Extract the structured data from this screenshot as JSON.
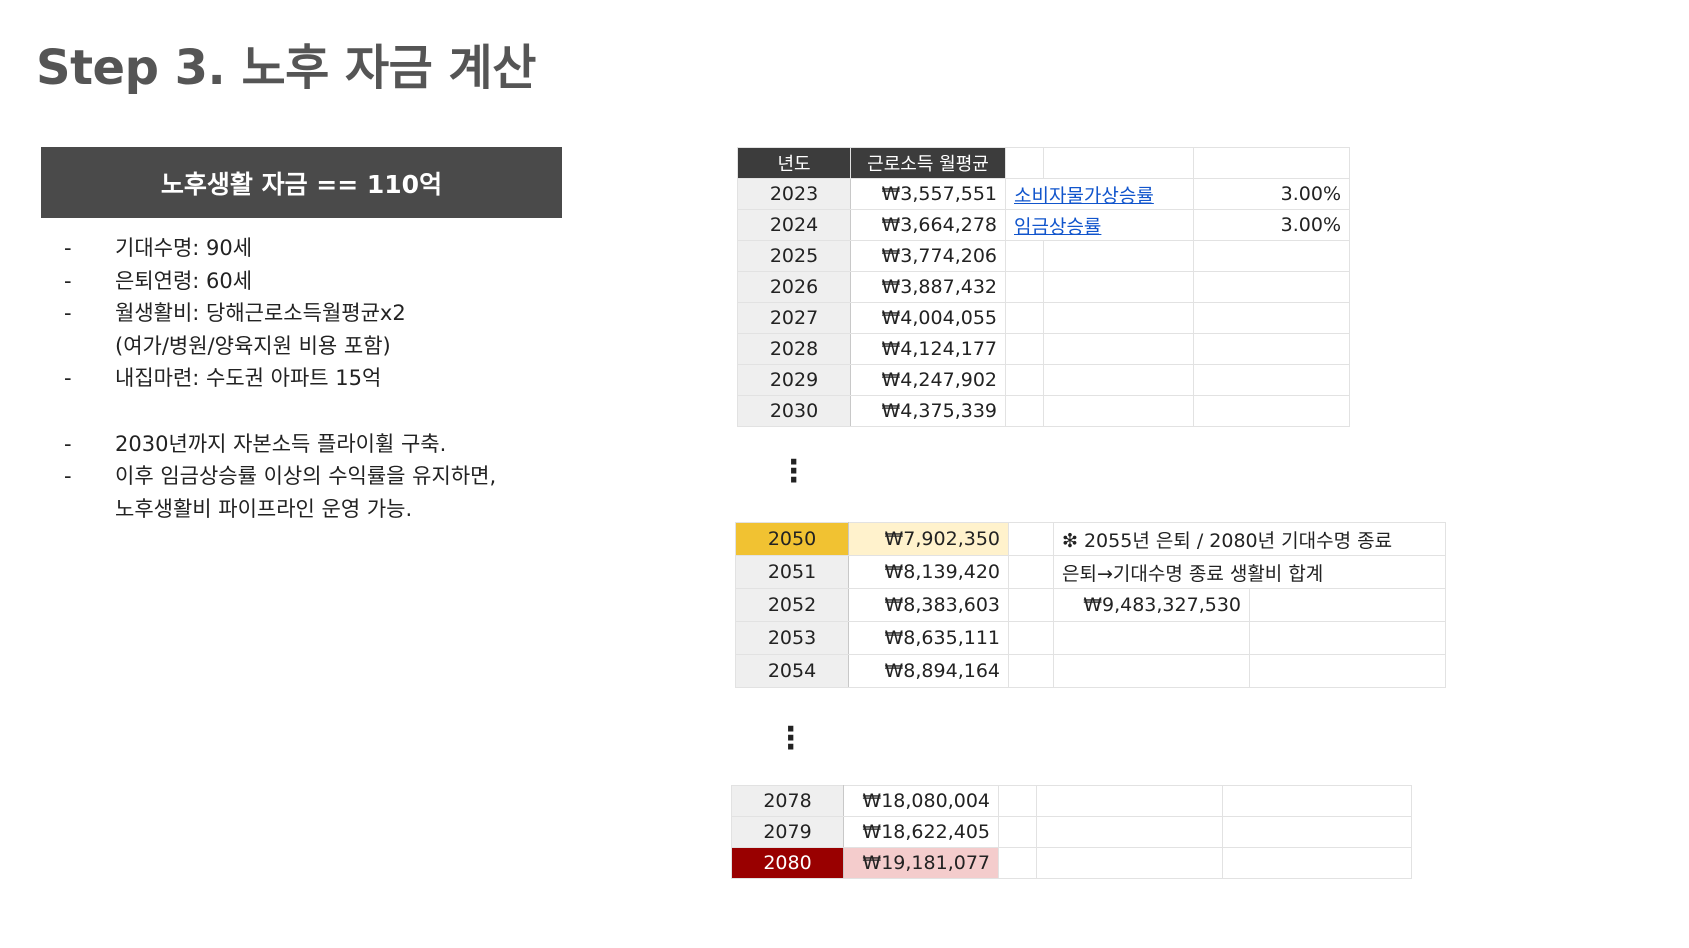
{
  "title": "Step 3. 노후 자금 계산",
  "box": {
    "header": "노후생활 자금 == 110억"
  },
  "bullets": [
    {
      "dash": "-",
      "text": "기대수명: 90세"
    },
    {
      "dash": "-",
      "text": "은퇴연령: 60세"
    },
    {
      "dash": "-",
      "text": "월생활비: 당해근로소득월평균x2"
    },
    {
      "dash": "",
      "text": "(여가/병원/양육지원 비용 포함)"
    },
    {
      "dash": "-",
      "text": "내집마련: 수도권 아파트 15억"
    },
    {
      "dash": "-",
      "text": "2030년까지 자본소득 플라이휠 구축."
    },
    {
      "dash": "-",
      "text": "이후 임금상승률 이상의 수익률을 유지하면,"
    },
    {
      "dash": "",
      "text": "노후생활비 파이프라인 운영 가능."
    }
  ],
  "sheet1": {
    "headers": {
      "year": "년도",
      "income": "근로소득 월평균"
    },
    "rows": [
      {
        "year": "2023",
        "value": "₩3,557,551"
      },
      {
        "year": "2024",
        "value": "₩3,664,278"
      },
      {
        "year": "2025",
        "value": "₩3,774,206"
      },
      {
        "year": "2026",
        "value": "₩3,887,432"
      },
      {
        "year": "2027",
        "value": "₩4,004,055"
      },
      {
        "year": "2028",
        "value": "₩4,124,177"
      },
      {
        "year": "2029",
        "value": "₩4,247,902"
      },
      {
        "year": "2030",
        "value": "₩4,375,339"
      }
    ],
    "params": [
      {
        "label": "소비자물가상승률",
        "value": "3.00%"
      },
      {
        "label": "임금상승률",
        "value": "3.00%"
      }
    ]
  },
  "sheet2": {
    "rows": [
      {
        "year": "2050",
        "value": "₩7,902,350"
      },
      {
        "year": "2051",
        "value": "₩8,139,420"
      },
      {
        "year": "2052",
        "value": "₩8,383,603"
      },
      {
        "year": "2053",
        "value": "₩8,635,111"
      },
      {
        "year": "2054",
        "value": "₩8,894,164"
      }
    ],
    "note1": "❇ 2055년 은퇴 / 2080년 기대수명 종료",
    "note2": "은퇴→기대수명 종료 생활비 합계",
    "total": "₩9,483,327,530"
  },
  "sheet3": {
    "rows": [
      {
        "year": "2078",
        "value": "₩18,080,004"
      },
      {
        "year": "2079",
        "value": "₩18,622,405"
      },
      {
        "year": "2080",
        "value": "₩19,181,077"
      }
    ]
  },
  "colors": {
    "header_box": "#4a4a4a",
    "highlight_2050_year": "#f1c232",
    "highlight_2050_value": "#fff2cc",
    "highlight_2080_year": "#990000",
    "highlight_2080_value": "#f4cccc",
    "link": "#1155cc"
  }
}
